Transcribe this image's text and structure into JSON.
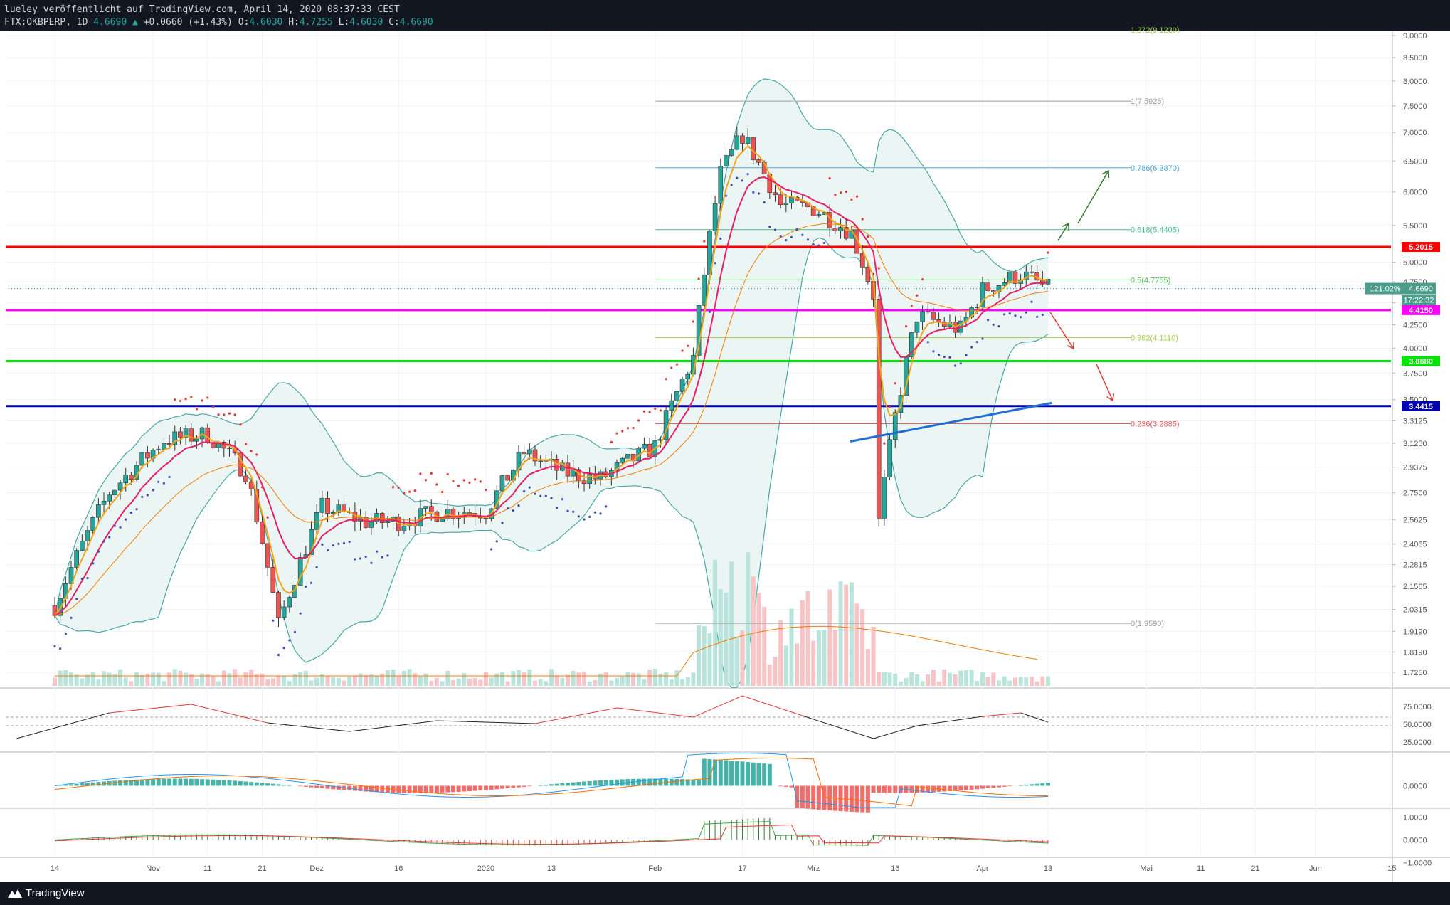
{
  "header": {
    "line1": "lueley veröffentlicht auf TradingView.com, April 14, 2020 08:37:33 CEST",
    "symbol": "FTX:OKBPERP, 1D",
    "last": "4.6690",
    "change": "+0.0660 (+1.43%)",
    "open": "4.6030",
    "high": "4.7255",
    "low": "4.6030",
    "close": "4.6690",
    "o_label": "O:",
    "h_label": "H:",
    "l_label": "L:",
    "c_label": "C:"
  },
  "footer": {
    "brand": "TradingView"
  },
  "colors": {
    "up": "#26a69a",
    "down": "#ef5350",
    "ema_fast": "#f2a51a",
    "ema_slow": "#e91e63",
    "bb": "#4aa6a6",
    "fib_786": "#4ea6d9",
    "fib_618": "#43c18b",
    "fib_05": "#56c256",
    "fib_382": "#a7cf4a",
    "fib_236": "#e85a5a",
    "res_red": "#ff0000",
    "res_magenta": "#ff00ff",
    "sup_green": "#00e600",
    "sup_blue": "#0000b3"
  },
  "chart_data": [
    {
      "type": "line",
      "title": "",
      "series": [
        {
          "name": "",
          "x": [
            "2019-10-14",
            "2019-10-24",
            "2019-11-03",
            "2019-11-11",
            "2019-11-18",
            "2019-11-24",
            "2019-12-02",
            "2019-12-10",
            "2019-12-16",
            "2019-12-24",
            "2020-01-01",
            "2020-01-08",
            "2020-01-15",
            "2020-01-22",
            "2020-02-01",
            "2020-02-08",
            "2020-02-13",
            "2020-02-17",
            "2020-02-24",
            "2020-03-01",
            "2020-03-08",
            "2020-03-12",
            "2020-03-13",
            "2020-03-16",
            "2020-03-20",
            "2020-03-28",
            "2020-04-01",
            "2020-04-08",
            "2020-04-13"
          ],
          "y": [
            2.05,
            2.75,
            3.15,
            3.2,
            2.9,
            1.95,
            2.65,
            2.55,
            2.55,
            2.62,
            2.62,
            3.05,
            2.9,
            2.85,
            3.1,
            3.9,
            6.3,
            6.95,
            5.8,
            5.75,
            5.4,
            4.6,
            2.55,
            3.35,
            4.35,
            4.2,
            4.65,
            4.85,
            4.669
          ]
        }
      ],
      "xlabel": "",
      "ylabel": "",
      "ylim": [
        1.6,
        9.0
      ],
      "x_ticks": [
        "14",
        "Nov",
        "11",
        "21",
        "Dez",
        "16",
        "2020",
        "13",
        "Feb",
        "17",
        "Mrz",
        "16",
        "Apr",
        "13",
        "Mai",
        "11",
        "21",
        "Jun",
        "15"
      ],
      "y_ticks": [
        "9.0000",
        "8.5000",
        "8.0000",
        "7.5000",
        "7.0000",
        "6.5000",
        "6.0000",
        "5.5000",
        "5.0000",
        "4.7500",
        "4.5000",
        "4.2500",
        "4.0000",
        "3.7500",
        "3.5000",
        "3.3125",
        "3.1250",
        "2.9375",
        "2.7500",
        "2.5625",
        "2.4065",
        "2.2815",
        "2.1565",
        "2.0315",
        "1.9190",
        "1.8190",
        "1.7250"
      ],
      "fib_levels": [
        {
          "label": "1(7.5925)",
          "value": 7.5925
        },
        {
          "label": "0.786(6.3870)",
          "value": 6.387
        },
        {
          "label": "0.618(5.4405)",
          "value": 5.4405
        },
        {
          "label": "0.5(4.7755)",
          "value": 4.7755
        },
        {
          "label": "0.382(4.1110)",
          "value": 4.111
        },
        {
          "label": "0.236(3.2885)",
          "value": 3.2885
        },
        {
          "label": "0(1.9590)",
          "value": 1.959
        }
      ],
      "fib_top_label": "1.272(9.1230)",
      "horizontal_levels": [
        {
          "label": "5.2015",
          "value": 5.2015,
          "color": "#ff0000"
        },
        {
          "label": "4.4150",
          "value": 4.415,
          "color": "#ff00ff"
        },
        {
          "label": "3.8680",
          "value": 3.868,
          "color": "#00e600"
        },
        {
          "label": "3.4415",
          "value": 3.4415,
          "color": "#0000b3"
        }
      ],
      "price_tag": "4.6690",
      "pct_tag": "121.02%",
      "countdown": "17:22:32"
    },
    {
      "type": "line",
      "title": "",
      "ylim": [
        12,
        100
      ],
      "y_ticks": [
        "75.0000",
        "50.0000",
        "25.0000"
      ],
      "series": [
        {
          "name": "",
          "x": [
            "2019-10-07",
            "2019-10-24",
            "2019-11-08",
            "2019-11-22",
            "2019-12-07",
            "2019-12-23",
            "2020-01-10",
            "2020-01-25",
            "2020-02-08",
            "2020-02-17",
            "2020-02-28",
            "2020-03-12",
            "2020-03-20",
            "2020-04-01",
            "2020-04-08",
            "2020-04-13"
          ],
          "y": [
            30,
            66,
            78,
            52,
            40,
            55,
            51,
            73,
            60,
            90,
            62,
            30,
            48,
            61,
            66,
            53
          ]
        }
      ]
    },
    {
      "type": "bar",
      "title": "",
      "y_ticks": [
        "0.0000"
      ],
      "description_ref": "histogram"
    },
    {
      "type": "bar",
      "title": "",
      "y_ticks": [
        "1.0000",
        "0.0000",
        "−1.0000"
      ],
      "description_ref": "histogram"
    }
  ]
}
